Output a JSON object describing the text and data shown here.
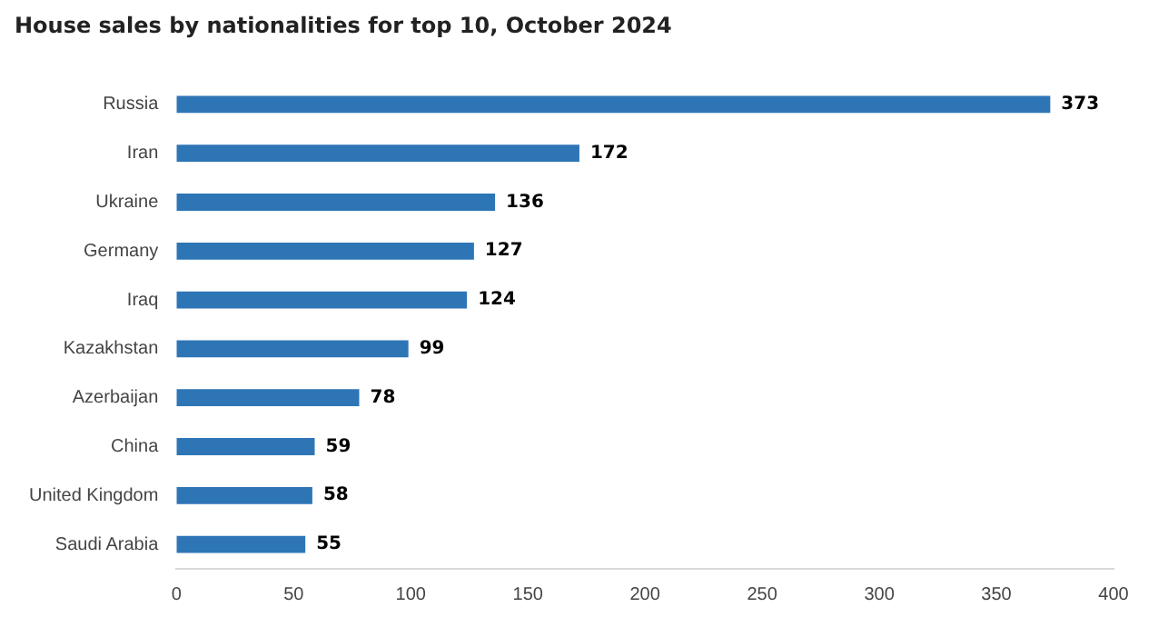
{
  "chart_data": {
    "type": "bar",
    "orientation": "horizontal",
    "title": "House sales by nationalities for top 10, October 2024",
    "categories": [
      "Russia",
      "Iran",
      "Ukraine",
      "Germany",
      "Iraq",
      "Kazakhstan",
      "Azerbaijan",
      "China",
      "United Kingdom",
      "Saudi Arabia"
    ],
    "values": [
      373,
      172,
      136,
      127,
      124,
      99,
      78,
      59,
      58,
      55
    ],
    "color": "#2e75b6",
    "xlim": [
      0,
      400
    ],
    "xticks": [
      0,
      50,
      100,
      150,
      200,
      250,
      300,
      350,
      400
    ],
    "grid": false,
    "legend": false,
    "data_labels": true
  }
}
